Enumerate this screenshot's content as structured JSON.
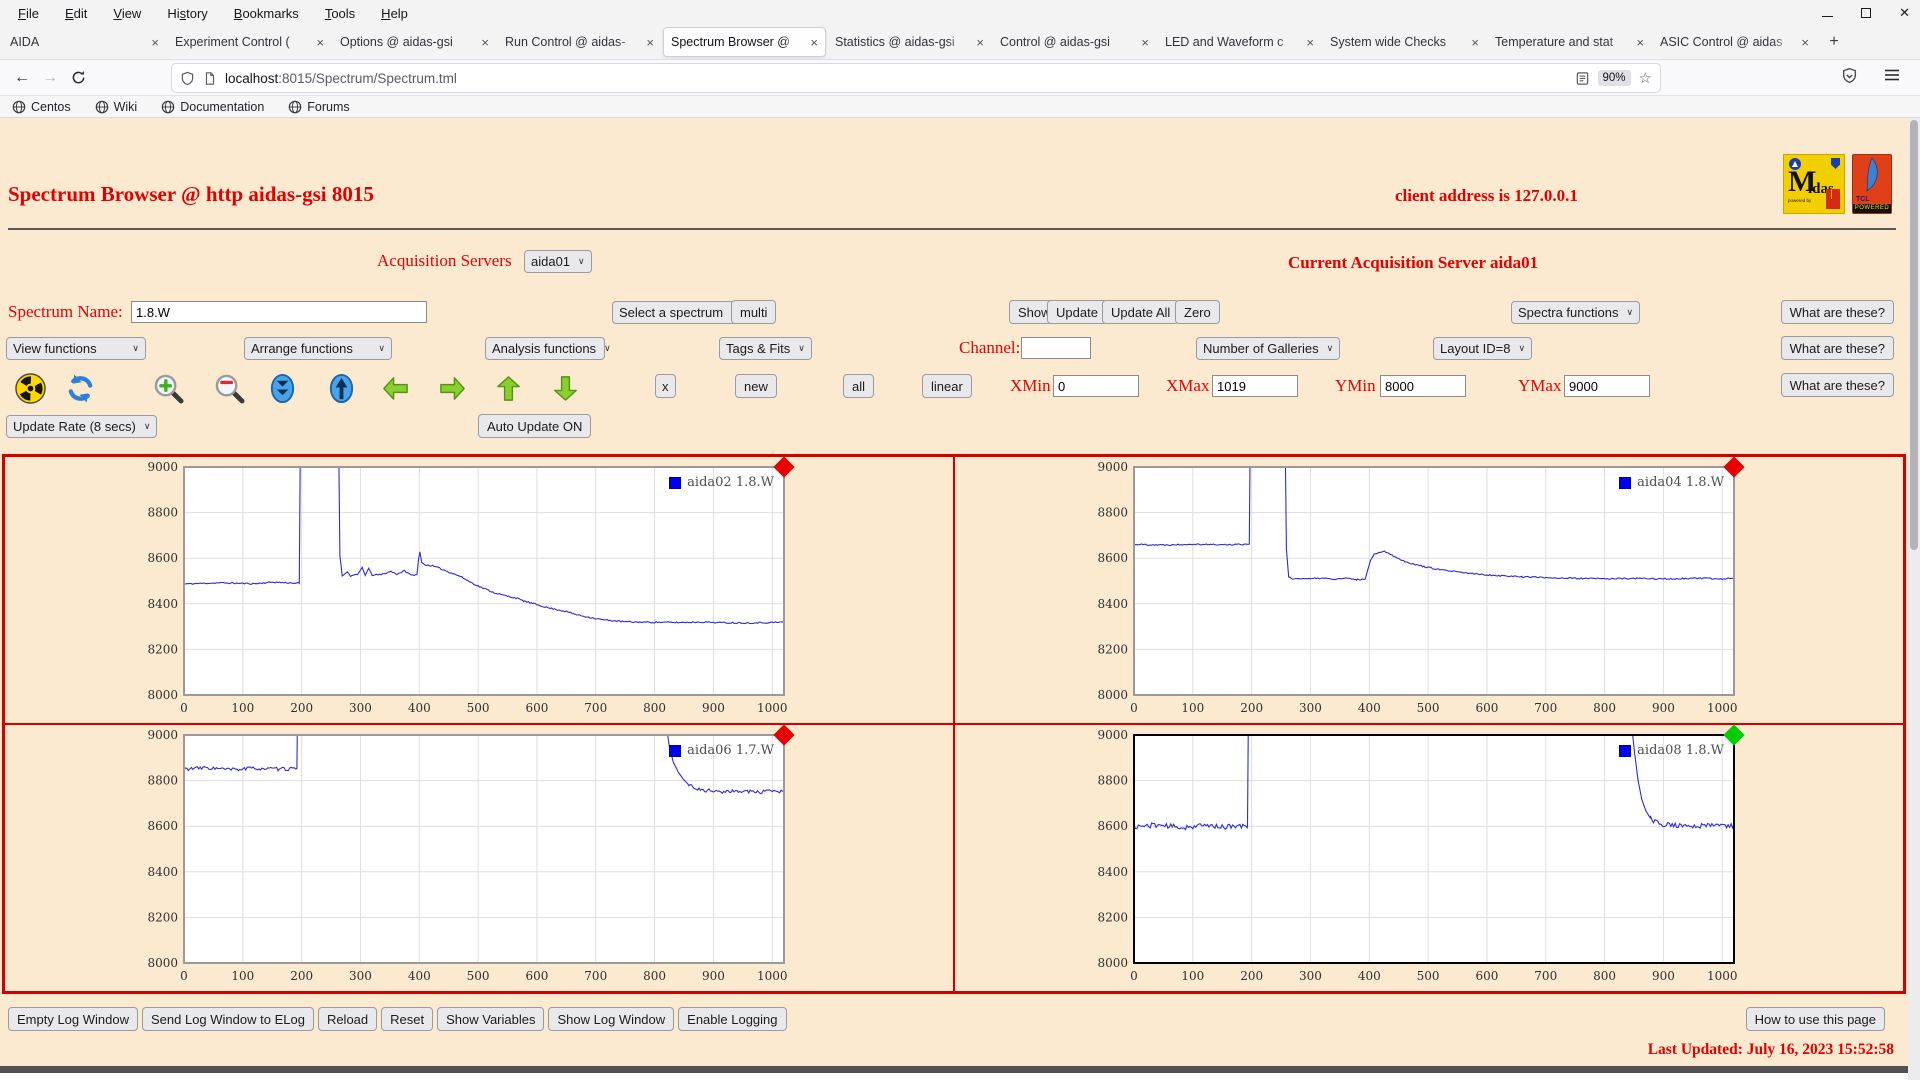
{
  "browser": {
    "menu": [
      {
        "label": "File",
        "accel": 0
      },
      {
        "label": "Edit",
        "accel": 0
      },
      {
        "label": "View",
        "accel": 0
      },
      {
        "label": "History",
        "accel": 2
      },
      {
        "label": "Bookmarks",
        "accel": 0
      },
      {
        "label": "Tools",
        "accel": 0
      },
      {
        "label": "Help",
        "accel": 0
      }
    ],
    "tabs": [
      {
        "label": "AIDA",
        "active": false
      },
      {
        "label": "Experiment Control (",
        "active": false
      },
      {
        "label": "Options @ aidas-gsi",
        "active": false
      },
      {
        "label": "Run Control @ aidas-",
        "active": false
      },
      {
        "label": "Spectrum Browser @",
        "active": true
      },
      {
        "label": "Statistics @ aidas-gsi",
        "active": false
      },
      {
        "label": "Control @ aidas-gsi",
        "active": false
      },
      {
        "label": "LED and Waveform c",
        "active": false
      },
      {
        "label": "System wide Checks",
        "active": false
      },
      {
        "label": "Temperature and stat",
        "active": false
      },
      {
        "label": "ASIC Control @ aidas",
        "active": false
      }
    ],
    "tab_close": "×",
    "new_tab_label": "+",
    "back": "←",
    "forward": "→",
    "url_host": "localhost",
    "url_rest": ":8015/Spectrum/Spectrum.tml",
    "zoom_badge": "90%",
    "star": "☆",
    "bookmarks": [
      "Centos",
      "Wiki",
      "Documentation",
      "Forums"
    ]
  },
  "page": {
    "title": "Spectrum Browser @ http aidas-gsi 8015",
    "client_address": "client address is 127.0.0.1",
    "acquisition_label": "Acquisition Servers",
    "acquisition_value": "aida01",
    "current_server": "Current Acquisition Server aida01",
    "spectrum_name_label": "Spectrum Name:",
    "spectrum_name_value": "1.8.W",
    "select_spectrum_label": "Select a spectrum",
    "multi_label": "multi",
    "show_label": "Show",
    "update_label": "Update",
    "update_all_label": "Update All",
    "zero_label": "Zero",
    "spectra_functions_label": "Spectra functions",
    "what_are_these_label": "What are these?",
    "view_functions_label": "View functions",
    "arrange_functions_label": "Arrange functions",
    "analysis_functions_label": "Analysis functions",
    "tags_fits_label": "Tags & Fits",
    "channel_label": "Channel:",
    "channel_value": "",
    "number_of_galleries_label": "Number of Galleries",
    "layout_id_label": "Layout ID=8",
    "x_button_label": "x",
    "new_label": "new",
    "all_label": "all",
    "linear_label": "linear",
    "xmin_label": "XMin",
    "xmin_value": "0",
    "xmax_label": "XMax",
    "xmax_value": "1019",
    "ymin_label": "YMin",
    "ymin_value": "8000",
    "ymax_label": "YMax",
    "ymax_value": "9000",
    "update_rate_label": "Update Rate (8 secs)",
    "auto_update_label": "Auto Update ON",
    "icon_names": [
      "radiation-icon",
      "refresh-icon",
      "zoom-in-icon",
      "zoom-out-icon",
      "collapse-vertical-icon",
      "expand-vertical-icon",
      "pan-left-icon",
      "pan-right-icon",
      "pan-up-icon",
      "pan-down-icon"
    ],
    "footer_buttons": [
      "Empty Log Window",
      "Send Log Window to ELog",
      "Reload",
      "Reset",
      "Show Variables",
      "Show Log Window",
      "Enable Logging"
    ],
    "how_to_label": "How to use this page",
    "last_updated": "Last Updated: July 16, 2023 15:52:58",
    "logos": {
      "midas_m": "M",
      "midas_idas": "idas",
      "midas_sub": "powered by",
      "tcl": "TCL",
      "tcl_powered": "POWERED"
    }
  },
  "chart_data": [
    {
      "type": "line",
      "legend": "aida02 1.8.W",
      "line_color": "#2c2cd8",
      "legend_square_color": "#0000f0",
      "marker": "red-diamond",
      "marker_color": "#e60000",
      "selected": false,
      "grid": true,
      "legend_position": "top-right",
      "xlim": [
        0,
        1019
      ],
      "ylim": [
        8000,
        9000
      ],
      "x_ticks": [
        0,
        100,
        200,
        300,
        400,
        500,
        600,
        700,
        800,
        900,
        1000
      ],
      "y_ticks": [
        8000,
        8200,
        8400,
        8600,
        8800,
        9000
      ],
      "noise": 3,
      "seed": 11,
      "points": [
        [
          0,
          8487
        ],
        [
          60,
          8492
        ],
        [
          120,
          8488
        ],
        [
          150,
          8495
        ],
        [
          196,
          8490
        ],
        [
          199,
          9600
        ],
        [
          261,
          9600
        ],
        [
          265,
          8610
        ],
        [
          269,
          8522
        ],
        [
          278,
          8540
        ],
        [
          283,
          8522
        ],
        [
          295,
          8528
        ],
        [
          303,
          8560
        ],
        [
          308,
          8524
        ],
        [
          314,
          8556
        ],
        [
          320,
          8526
        ],
        [
          335,
          8528
        ],
        [
          352,
          8542
        ],
        [
          362,
          8530
        ],
        [
          375,
          8545
        ],
        [
          386,
          8526
        ],
        [
          396,
          8528
        ],
        [
          399,
          8600
        ],
        [
          401,
          8628
        ],
        [
          404,
          8582
        ],
        [
          410,
          8570
        ],
        [
          420,
          8568
        ],
        [
          432,
          8558
        ],
        [
          445,
          8545
        ],
        [
          458,
          8532
        ],
        [
          470,
          8520
        ],
        [
          485,
          8498
        ],
        [
          500,
          8478
        ],
        [
          515,
          8462
        ],
        [
          528,
          8448
        ],
        [
          540,
          8440
        ],
        [
          552,
          8432
        ],
        [
          565,
          8425
        ],
        [
          578,
          8412
        ],
        [
          592,
          8402
        ],
        [
          606,
          8392
        ],
        [
          620,
          8382
        ],
        [
          635,
          8374
        ],
        [
          650,
          8366
        ],
        [
          665,
          8354
        ],
        [
          680,
          8345
        ],
        [
          695,
          8338
        ],
        [
          712,
          8330
        ],
        [
          728,
          8326
        ],
        [
          745,
          8322
        ],
        [
          765,
          8320
        ],
        [
          800,
          8319
        ],
        [
          840,
          8318
        ],
        [
          880,
          8320
        ],
        [
          920,
          8317
        ],
        [
          960,
          8316
        ],
        [
          1000,
          8318
        ],
        [
          1019,
          8320
        ]
      ]
    },
    {
      "type": "line",
      "legend": "aida04 1.8.W",
      "line_color": "#2c2cd8",
      "legend_square_color": "#0000f0",
      "marker": "red-diamond",
      "marker_color": "#e60000",
      "selected": false,
      "grid": true,
      "legend_position": "top-right",
      "xlim": [
        0,
        1019
      ],
      "ylim": [
        8000,
        9000
      ],
      "x_ticks": [
        0,
        100,
        200,
        300,
        400,
        500,
        600,
        700,
        800,
        900,
        1000
      ],
      "y_ticks": [
        8000,
        8200,
        8400,
        8600,
        8800,
        9000
      ],
      "noise": 3,
      "seed": 22,
      "points": [
        [
          0,
          8661
        ],
        [
          50,
          8658
        ],
        [
          100,
          8662
        ],
        [
          150,
          8659
        ],
        [
          196,
          8662
        ],
        [
          199,
          9600
        ],
        [
          255,
          9600
        ],
        [
          259,
          8640
        ],
        [
          263,
          8520
        ],
        [
          270,
          8508
        ],
        [
          285,
          8512
        ],
        [
          300,
          8509
        ],
        [
          320,
          8513
        ],
        [
          340,
          8507
        ],
        [
          360,
          8512
        ],
        [
          378,
          8506
        ],
        [
          393,
          8508
        ],
        [
          397,
          8545
        ],
        [
          402,
          8590
        ],
        [
          408,
          8615
        ],
        [
          416,
          8627
        ],
        [
          426,
          8630
        ],
        [
          436,
          8618
        ],
        [
          448,
          8600
        ],
        [
          462,
          8585
        ],
        [
          478,
          8572
        ],
        [
          495,
          8562
        ],
        [
          515,
          8552
        ],
        [
          535,
          8544
        ],
        [
          558,
          8537
        ],
        [
          580,
          8531
        ],
        [
          605,
          8526
        ],
        [
          632,
          8522
        ],
        [
          660,
          8519
        ],
        [
          690,
          8516
        ],
        [
          725,
          8513
        ],
        [
          765,
          8511
        ],
        [
          810,
          8510
        ],
        [
          860,
          8511
        ],
        [
          910,
          8509
        ],
        [
          960,
          8512
        ],
        [
          1000,
          8509
        ],
        [
          1019,
          8514
        ]
      ]
    },
    {
      "type": "line",
      "legend": "aida06 1.7.W",
      "line_color": "#2c2cd8",
      "legend_square_color": "#0000f0",
      "marker": "red-diamond",
      "marker_color": "#e60000",
      "selected": false,
      "grid": true,
      "legend_position": "top-right",
      "xlim": [
        0,
        1019
      ],
      "ylim": [
        8000,
        9000
      ],
      "x_ticks": [
        0,
        100,
        200,
        300,
        400,
        500,
        600,
        700,
        800,
        900,
        1000
      ],
      "y_ticks": [
        8000,
        8200,
        8400,
        8600,
        8800,
        9000
      ],
      "noise": 8,
      "seed": 33,
      "points": [
        [
          0,
          8851
        ],
        [
          40,
          8856
        ],
        [
          80,
          8848
        ],
        [
          120,
          8854
        ],
        [
          160,
          8850
        ],
        [
          192,
          8853
        ],
        [
          195,
          9600
        ],
        [
          808,
          9600
        ],
        [
          818,
          9080
        ],
        [
          825,
          8950
        ],
        [
          832,
          8880
        ],
        [
          840,
          8838
        ],
        [
          849,
          8805
        ],
        [
          858,
          8782
        ],
        [
          868,
          8768
        ],
        [
          880,
          8760
        ],
        [
          900,
          8754
        ],
        [
          925,
          8750
        ],
        [
          950,
          8756
        ],
        [
          975,
          8748
        ],
        [
          1000,
          8753
        ],
        [
          1019,
          8750
        ]
      ]
    },
    {
      "type": "line",
      "legend": "aida08 1.8.W",
      "line_color": "#2c2cd8",
      "legend_square_color": "#0000f0",
      "marker": "green-diamond",
      "marker_color": "#00ce00",
      "selected": true,
      "grid": true,
      "legend_position": "top-right",
      "xlim": [
        0,
        1019
      ],
      "ylim": [
        8000,
        9000
      ],
      "x_ticks": [
        0,
        100,
        200,
        300,
        400,
        500,
        600,
        700,
        800,
        900,
        1000
      ],
      "y_ticks": [
        8000,
        8200,
        8400,
        8600,
        8800,
        9000
      ],
      "noise": 11,
      "seed": 44,
      "points": [
        [
          0,
          8597
        ],
        [
          40,
          8606
        ],
        [
          80,
          8594
        ],
        [
          120,
          8603
        ],
        [
          160,
          8597
        ],
        [
          193,
          8601
        ],
        [
          196,
          9600
        ],
        [
          836,
          9600
        ],
        [
          845,
          9070
        ],
        [
          851,
          8920
        ],
        [
          857,
          8800
        ],
        [
          863,
          8720
        ],
        [
          870,
          8668
        ],
        [
          878,
          8635
        ],
        [
          888,
          8616
        ],
        [
          900,
          8608
        ],
        [
          920,
          8604
        ],
        [
          950,
          8598
        ],
        [
          980,
          8605
        ],
        [
          1019,
          8602
        ]
      ]
    }
  ]
}
